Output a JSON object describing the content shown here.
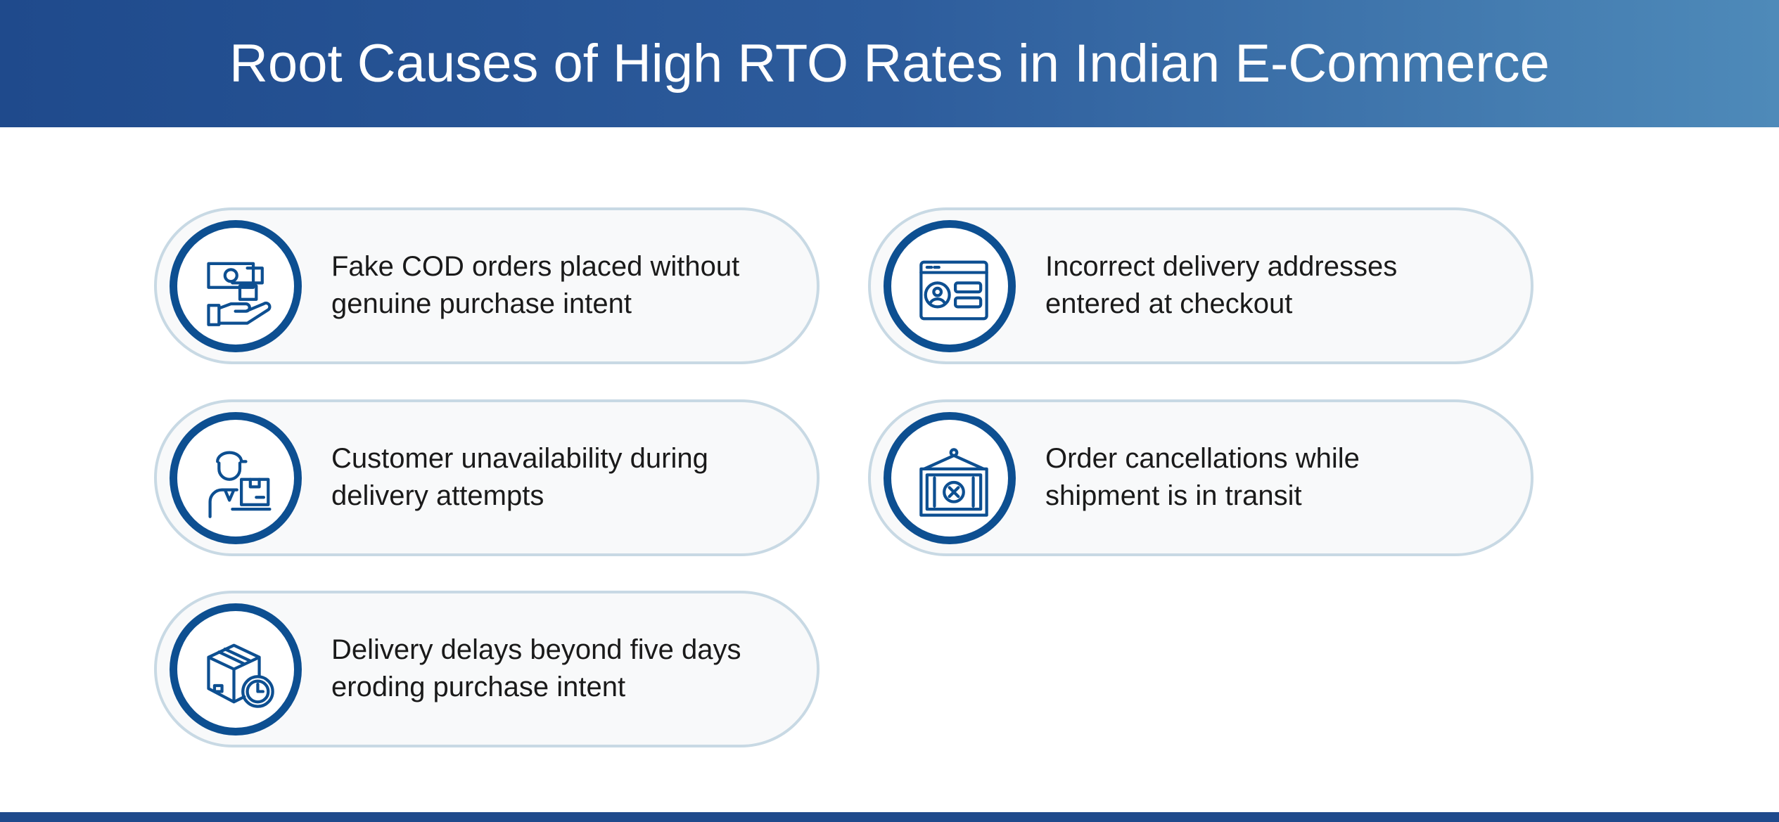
{
  "header": {
    "title": "Root Causes of High RTO Rates in Indian E-Commerce"
  },
  "items": [
    {
      "lines": [
        "Fake COD orders placed without",
        "genuine purchase intent"
      ]
    },
    {
      "lines": [
        "Incorrect delivery addresses",
        "entered at checkout"
      ]
    },
    {
      "lines": [
        "Customer unavailability during",
        "delivery attempts"
      ]
    },
    {
      "lines": [
        "Order cancellations while",
        "shipment is in transit"
      ]
    },
    {
      "lines": [
        "Delivery delays beyond five days",
        "eroding purchase intent"
      ]
    }
  ]
}
